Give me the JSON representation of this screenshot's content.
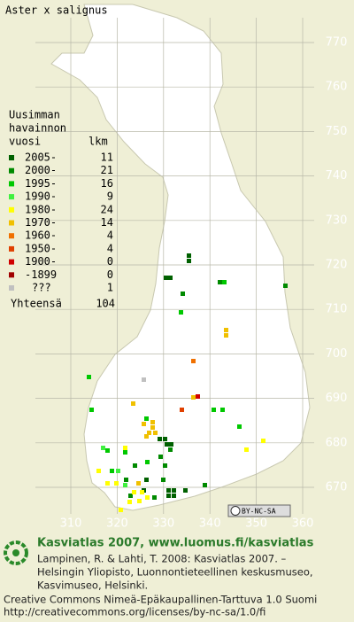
{
  "title": "Aster x salignus",
  "legend": {
    "heading": [
      "Uusimman",
      "havainnon",
      "vuosi"
    ],
    "count_heading": "lkm",
    "items": [
      {
        "label": "2005-",
        "count": 11,
        "color": "#006000"
      },
      {
        "label": "2000-",
        "count": 21,
        "color": "#008a00"
      },
      {
        "label": "1995-",
        "count": 16,
        "color": "#00c800"
      },
      {
        "label": "1990-",
        "count": 9,
        "color": "#40f040"
      },
      {
        "label": "1980-",
        "count": 24,
        "color": "#ffff00"
      },
      {
        "label": "1970-",
        "count": 14,
        "color": "#f0c000"
      },
      {
        "label": "1960-",
        "count": 4,
        "color": "#f07000"
      },
      {
        "label": "1950-",
        "count": 4,
        "color": "#e04000"
      },
      {
        "label": "1900-",
        "count": 0,
        "color": "#d00000"
      },
      {
        "label": "-1899",
        "count": 0,
        "color": "#a00000"
      },
      {
        "label": "???",
        "count": 1,
        "color": "#c0c0c0"
      }
    ],
    "total_label": "Yhteensä",
    "total": 104
  },
  "grid": {
    "north": [
      770,
      760,
      750,
      740,
      730,
      720,
      710,
      700,
      690,
      680,
      670
    ],
    "east": [
      310,
      320,
      330,
      340,
      350,
      360
    ]
  },
  "license_badge": "BY-NC-SA",
  "footer": {
    "title": "Kasviatlas 2007, www.luomus.fi/kasviatlas",
    "citation": [
      "Lampinen, R. & Lahti, T. 2008: Kasviatlas 2007. –",
      "Helsingin Yliopisto, Luonnontieteellinen keskusmuseo,",
      "Kasvimuseo, Helsinki."
    ],
    "license": [
      "Creative Commons Nimeä-Epäkaupallinen-Tarttuva 1.0 Suomi",
      "http://creativecommons.org/licenses/by-nc-sa/1.0/fi"
    ]
  }
}
